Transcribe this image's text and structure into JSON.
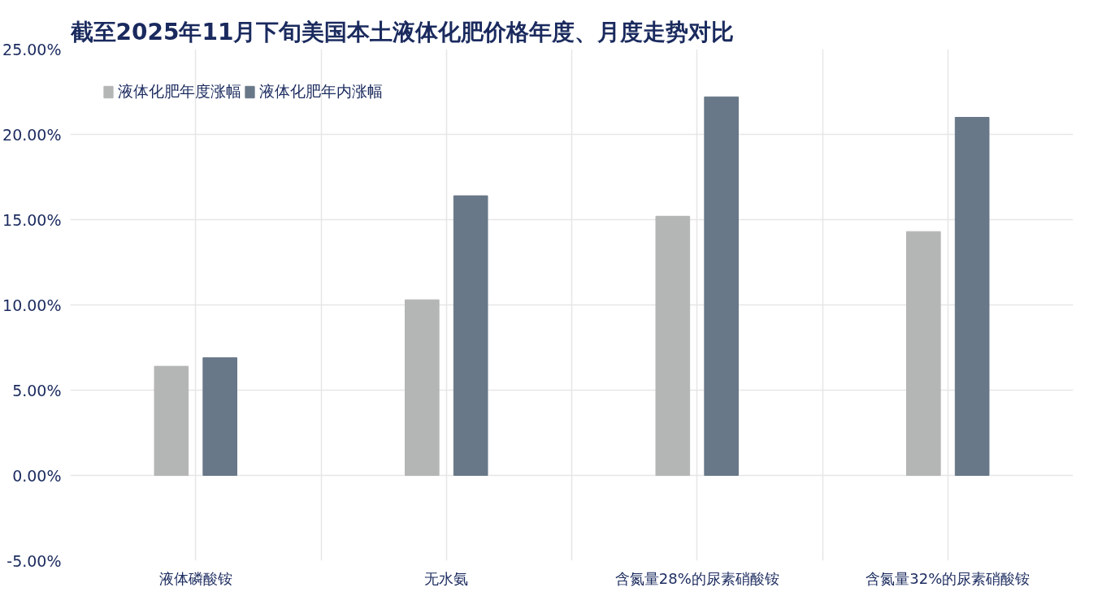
{
  "chart_data": {
    "type": "bar",
    "title": "截至2025年11月下旬美国本土液体化肥价格年度、月度走势对比",
    "categories": [
      "液体磷酸铵",
      "无水氨",
      "含氮量28%的尿素硝酸铵",
      "含氮量32%的尿素硝酸铵"
    ],
    "series": [
      {
        "name": "液体化肥年度涨幅",
        "color": "#b4b5b5",
        "values": [
          6.4,
          10.3,
          15.2,
          14.3
        ]
      },
      {
        "name": "液体化肥年内涨幅",
        "color": "#687888",
        "values": [
          6.9,
          16.4,
          22.2,
          21.0
        ]
      }
    ],
    "ylim": [
      -5,
      25
    ],
    "yticks": [
      {
        "value": -5,
        "label": "-5.00%"
      },
      {
        "value": 0,
        "label": "0.00%"
      },
      {
        "value": 5,
        "label": "5.00%"
      },
      {
        "value": 10,
        "label": "10.00%"
      },
      {
        "value": 15,
        "label": "15.00%"
      },
      {
        "value": 20,
        "label": "20.00%"
      },
      {
        "value": 25,
        "label": "25.00%"
      }
    ],
    "grid": true,
    "legend": "top left"
  }
}
